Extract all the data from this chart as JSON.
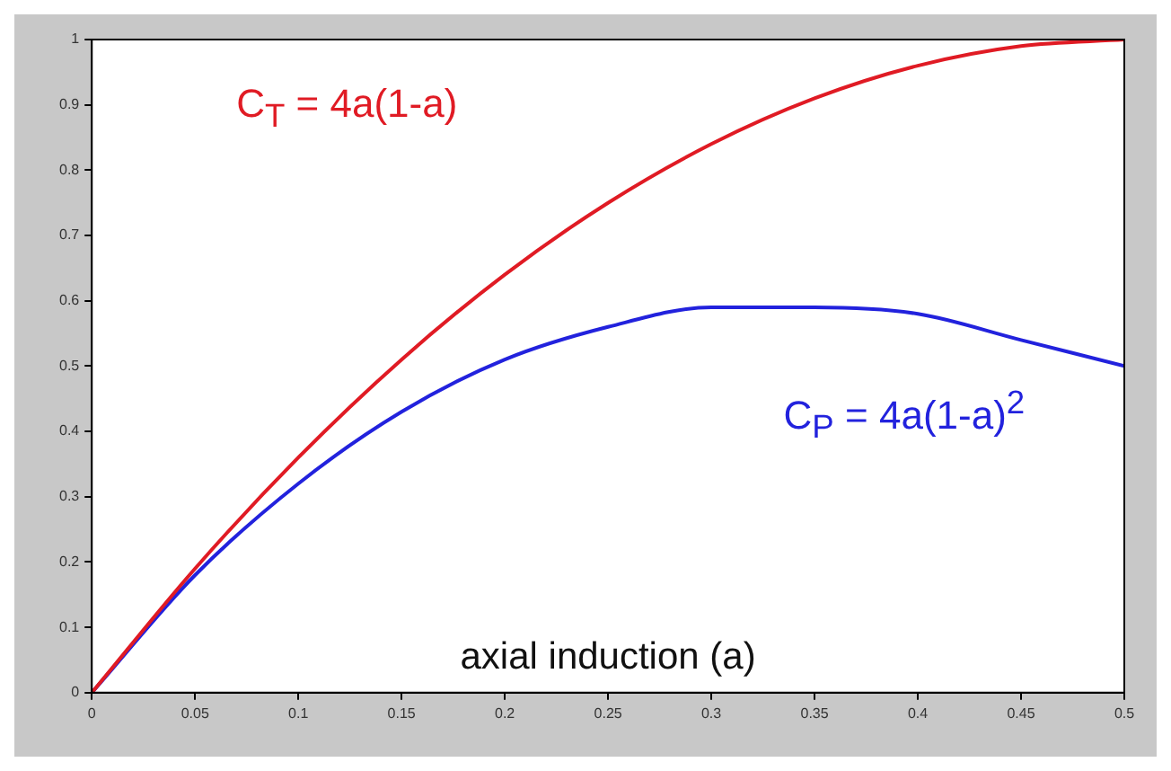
{
  "chart_data": {
    "type": "line",
    "xlabel": "axial induction (a)",
    "x": [
      0,
      0.05,
      0.1,
      0.15,
      0.2,
      0.25,
      0.3,
      0.35,
      0.4,
      0.45,
      0.5
    ],
    "series": [
      {
        "name": "C$_{T}$ = 4a(1-a)",
        "color": "#e01b24",
        "values": [
          0,
          0.19,
          0.36,
          0.51,
          0.64,
          0.75,
          0.84,
          0.91,
          0.96,
          0.99,
          1
        ]
      },
      {
        "name": "C$_{P}$ = 4a(1-a)$^{2}$",
        "color": "#2222dd",
        "values": [
          0,
          0.18,
          0.32,
          0.43,
          0.51,
          0.56,
          0.59,
          0.59,
          0.58,
          0.54,
          0.5
        ]
      }
    ],
    "xlim": [
      0,
      0.5
    ],
    "xticks": [
      0,
      0.05,
      0.1,
      0.15,
      0.2,
      0.25,
      0.3,
      0.35,
      0.4,
      0.45,
      0.5
    ],
    "ylim": [
      0,
      1
    ],
    "yticks": [
      0,
      0.1,
      0.2,
      0.3,
      0.4,
      0.5,
      0.6,
      0.7,
      0.8,
      0.9,
      1
    ],
    "grid": false,
    "legend": false,
    "marker": "none",
    "line_style": "solid"
  }
}
